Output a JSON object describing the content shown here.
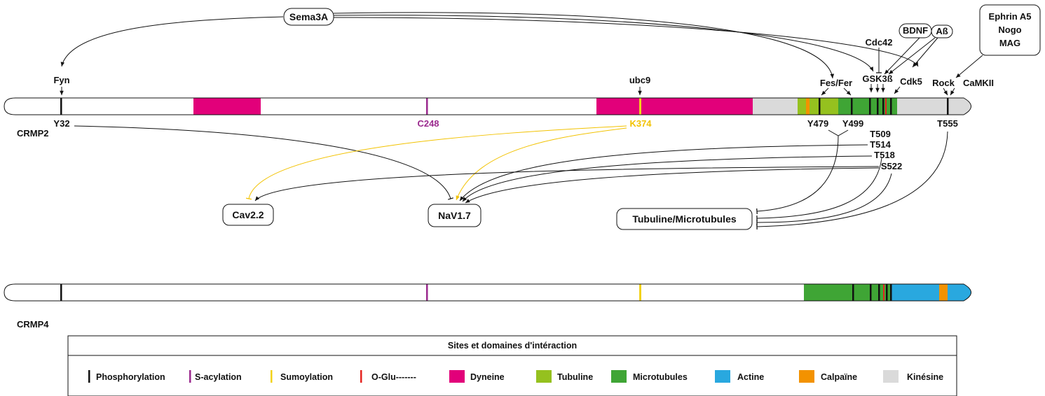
{
  "colors": {
    "phospho": "#111111",
    "sacyl": "#9b2a8e",
    "sumo": "#f2d21a",
    "oglu": "#e52420",
    "dyneine": "#e2007a",
    "tubuline": "#95c11f",
    "microtubules": "#3fa535",
    "actine": "#29a8df",
    "calpaine": "#f39200",
    "kinesine": "#dadada"
  },
  "proteins": {
    "crmp2": "CRMP2",
    "crmp4": "CRMP4"
  },
  "sites": {
    "y32": "Y32",
    "c248": "C248",
    "k374": "K374",
    "y479": "Y479",
    "y499": "Y499",
    "t509": "T509",
    "t514": "T514",
    "t518": "T518",
    "s522": "S522",
    "t555": "T555"
  },
  "regulators": {
    "sema3a": "Sema3A",
    "fyn": "Fyn",
    "ubc9": "ubc9",
    "fes_fer": "Fes/Fer",
    "gsk3b": "GSK3ß",
    "cdc42": "Cdc42",
    "bdnf": "BDNF",
    "abeta": "Aß",
    "cdk5": "Cdk5",
    "rock": "Rock",
    "camkii": "CaMKII",
    "ephrin_box": [
      "Ephrin A5",
      "Nogo",
      "MAG"
    ]
  },
  "targets": {
    "cav22": "Cav2.2",
    "nav17": "NaV1.7",
    "tubuline": "Tubuline/Microtubules"
  },
  "legend": {
    "title": "Sites et domaines d'intéraction",
    "items": [
      "Phosphorylation",
      "S-acylation",
      "Sumoylation",
      "O-Glu-------",
      "Dyneine",
      "Tubuline",
      "Microtubules",
      "Actine",
      "Calpaïne",
      "Kinésine"
    ]
  }
}
